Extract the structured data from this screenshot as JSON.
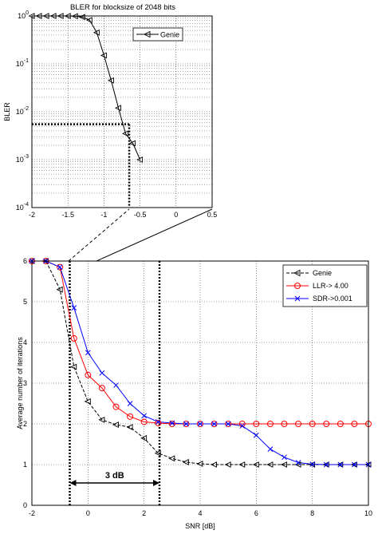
{
  "chart_data": [
    {
      "type": "line",
      "title": "BLER for blocksize of 2048 bits",
      "xlabel": "",
      "ylabel": "BLER",
      "xlim": [
        -2,
        0.5
      ],
      "ylim": [
        0.0001,
        1
      ],
      "yscale": "log",
      "grid": true,
      "legend_position": "top-right",
      "xticks": [
        "-2",
        "-1.5",
        "-1",
        "-0.5",
        "0",
        "0.5"
      ],
      "yticks": [
        {
          "base": "10",
          "exp": "0",
          "value": 1
        },
        {
          "base": "10",
          "exp": "-1",
          "value": 0.1
        },
        {
          "base": "10",
          "exp": "-2",
          "value": 0.01
        },
        {
          "base": "10",
          "exp": "-3",
          "value": 0.001
        },
        {
          "base": "10",
          "exp": "-4",
          "value": 0.0001
        }
      ],
      "series": [
        {
          "name": "Genie",
          "color": "#000000",
          "marker": "triangle-left",
          "x": [
            -2.0,
            -1.9,
            -1.8,
            -1.7,
            -1.6,
            -1.5,
            -1.4,
            -1.3,
            -1.2,
            -1.1,
            -1.0,
            -0.9,
            -0.8,
            -0.7,
            -0.6,
            -0.5
          ],
          "y": [
            1.0,
            1.0,
            1.0,
            1.0,
            1.0,
            1.0,
            0.99,
            0.95,
            0.82,
            0.45,
            0.15,
            0.045,
            0.012,
            0.0035,
            0.0022,
            0.001
          ]
        }
      ]
    },
    {
      "type": "line",
      "title": "",
      "xlabel": "SNR [dB]",
      "ylabel": "Average number of iterations",
      "xlim": [
        -2,
        10
      ],
      "ylim": [
        0,
        6
      ],
      "grid": true,
      "legend_position": "top-right",
      "xticks": [
        "-2",
        "0",
        "2",
        "4",
        "6",
        "8",
        "10"
      ],
      "yticks": [
        "0",
        "1",
        "2",
        "3",
        "4",
        "5",
        "6"
      ],
      "series": [
        {
          "name": "Genie",
          "color": "#000000",
          "marker": "triangle-left",
          "x": [
            -2.0,
            -1.5,
            -1.0,
            -0.5,
            0.0,
            0.5,
            1.0,
            1.5,
            2.0,
            2.5,
            3.0,
            3.5,
            4.0,
            4.5,
            5.0,
            5.5,
            6.0,
            6.5,
            7.0,
            7.5,
            8.0,
            8.5,
            9.0,
            9.5,
            10.0
          ],
          "y": [
            6.0,
            6.0,
            5.3,
            3.4,
            2.55,
            2.1,
            1.98,
            1.92,
            1.65,
            1.28,
            1.15,
            1.06,
            1.02,
            1.0,
            1.0,
            1.0,
            1.0,
            1.0,
            1.0,
            1.0,
            1.0,
            1.0,
            1.0,
            1.0,
            1.0
          ]
        },
        {
          "name": "LLR-> 4.00",
          "color": "#ff0000",
          "marker": "circle",
          "x": [
            -2.0,
            -1.5,
            -1.0,
            -0.5,
            0.0,
            0.5,
            1.0,
            1.5,
            2.0,
            2.5,
            3.0,
            3.5,
            4.0,
            4.5,
            5.0,
            5.5,
            6.0,
            6.5,
            7.0,
            7.5,
            8.0,
            8.5,
            9.0,
            9.5,
            10.0
          ],
          "y": [
            6.0,
            6.0,
            5.85,
            4.1,
            3.2,
            2.88,
            2.42,
            2.18,
            2.05,
            2.02,
            2.0,
            2.0,
            2.0,
            2.0,
            2.0,
            2.0,
            2.0,
            2.0,
            2.0,
            2.0,
            2.0,
            2.0,
            2.0,
            2.0,
            2.0
          ]
        },
        {
          "name": "SDR->0.001",
          "color": "#0000ff",
          "marker": "x",
          "x": [
            -2.0,
            -1.5,
            -1.0,
            -0.5,
            0.0,
            0.5,
            1.0,
            1.5,
            2.0,
            2.5,
            3.0,
            3.5,
            4.0,
            4.5,
            5.0,
            5.5,
            6.0,
            6.5,
            7.0,
            7.5,
            8.0,
            8.5,
            9.0,
            9.5,
            10.0
          ],
          "y": [
            6.0,
            6.0,
            5.85,
            4.85,
            3.75,
            3.25,
            2.95,
            2.5,
            2.2,
            2.05,
            2.02,
            2.0,
            2.0,
            2.0,
            2.0,
            1.95,
            1.72,
            1.38,
            1.18,
            1.05,
            1.01,
            1.0,
            1.0,
            1.0,
            1.0
          ]
        }
      ],
      "annotations": [
        {
          "text": "3 dB",
          "x_from": -0.65,
          "x_to": 2.55,
          "y": 0.55
        },
        {
          "type": "vline",
          "x": -0.65,
          "style": "dotted"
        },
        {
          "type": "vline",
          "x": 2.55,
          "style": "dotted"
        }
      ]
    }
  ]
}
